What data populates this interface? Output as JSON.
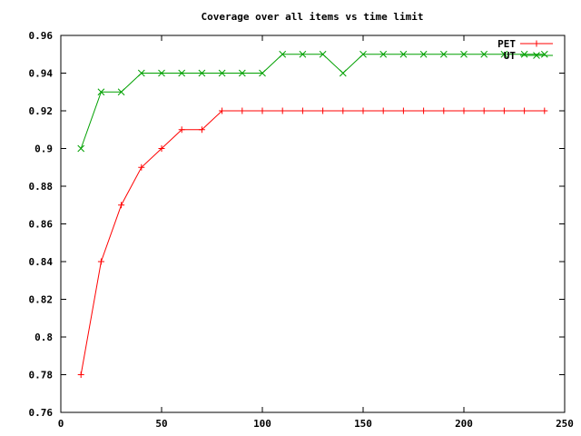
{
  "chart_data": {
    "type": "line",
    "title": "Coverage over all items vs time limit",
    "xlabel": "",
    "ylabel": "",
    "xlim": [
      0,
      250
    ],
    "ylim": [
      0.76,
      0.96
    ],
    "x_ticks": [
      0,
      50,
      100,
      150,
      200,
      250
    ],
    "x_tick_labels": [
      "0",
      "50",
      "100",
      "150",
      "200",
      "250"
    ],
    "y_ticks": [
      0.76,
      0.78,
      0.8,
      0.82,
      0.84,
      0.86,
      0.88,
      0.9,
      0.92,
      0.94,
      0.96
    ],
    "y_tick_labels": [
      "0.76",
      "0.78",
      "0.8",
      "0.82",
      "0.84",
      "0.86",
      "0.88",
      "0.9",
      "0.92",
      "0.94",
      "0.96"
    ],
    "grid": false,
    "legend_position": "top-right",
    "series": [
      {
        "name": "PET",
        "color": "#ff0000",
        "marker": "plus",
        "x": [
          10,
          20,
          30,
          40,
          50,
          60,
          70,
          80,
          90,
          100,
          110,
          120,
          130,
          140,
          150,
          160,
          170,
          180,
          190,
          200,
          210,
          220,
          230,
          240
        ],
        "y": [
          0.78,
          0.84,
          0.87,
          0.89,
          0.9,
          0.91,
          0.91,
          0.92,
          0.92,
          0.92,
          0.92,
          0.92,
          0.92,
          0.92,
          0.92,
          0.92,
          0.92,
          0.92,
          0.92,
          0.92,
          0.92,
          0.92,
          0.92,
          0.92
        ]
      },
      {
        "name": "UT",
        "color": "#00a000",
        "marker": "cross",
        "x": [
          10,
          20,
          30,
          40,
          50,
          60,
          70,
          80,
          90,
          100,
          110,
          120,
          130,
          140,
          150,
          160,
          170,
          180,
          190,
          200,
          210,
          220,
          230,
          240
        ],
        "y": [
          0.9,
          0.93,
          0.93,
          0.94,
          0.94,
          0.94,
          0.94,
          0.94,
          0.94,
          0.94,
          0.95,
          0.95,
          0.95,
          0.94,
          0.95,
          0.95,
          0.95,
          0.95,
          0.95,
          0.95,
          0.95,
          0.95,
          0.95,
          0.95
        ]
      }
    ]
  }
}
